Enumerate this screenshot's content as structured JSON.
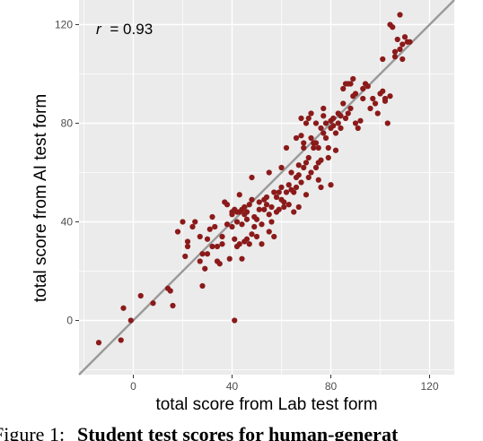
{
  "chart_data": {
    "type": "scatter",
    "annotation": {
      "r_symbol": "r",
      "r_value": "= 0.93"
    },
    "xlabel": "total score from Lab test form",
    "ylabel": "total score from AI test form",
    "xlim": [
      -22,
      130
    ],
    "ylim": [
      -22,
      130
    ],
    "x_ticks": [
      0,
      40,
      80,
      120
    ],
    "y_ticks": [
      0,
      40,
      80,
      120
    ],
    "grid": true,
    "reference_line": {
      "slope": 1,
      "intercept": 0
    },
    "point_color": "#8b1a1a",
    "panel_color": "#ebebeb",
    "grid_color": "#ffffff",
    "line_color": "#9a9a9a",
    "points": [
      [
        -14,
        -9
      ],
      [
        -5,
        -8
      ],
      [
        -4,
        5
      ],
      [
        -1,
        0
      ],
      [
        3,
        10
      ],
      [
        8,
        7
      ],
      [
        14,
        13
      ],
      [
        15,
        12
      ],
      [
        16,
        6
      ],
      [
        18,
        36
      ],
      [
        20,
        40
      ],
      [
        21,
        26
      ],
      [
        22,
        30
      ],
      [
        22,
        32
      ],
      [
        24,
        38
      ],
      [
        25,
        40
      ],
      [
        27,
        24
      ],
      [
        27,
        34
      ],
      [
        28,
        14
      ],
      [
        28,
        27
      ],
      [
        29,
        21
      ],
      [
        30,
        27
      ],
      [
        30,
        33
      ],
      [
        31,
        37
      ],
      [
        32,
        42
      ],
      [
        32,
        30
      ],
      [
        33,
        38
      ],
      [
        34,
        30
      ],
      [
        34,
        24
      ],
      [
        35,
        23
      ],
      [
        36,
        31
      ],
      [
        36,
        34
      ],
      [
        37,
        48
      ],
      [
        38,
        47
      ],
      [
        38,
        39
      ],
      [
        39,
        25
      ],
      [
        40,
        43
      ],
      [
        40,
        38
      ],
      [
        40,
        44
      ],
      [
        41,
        0
      ],
      [
        41,
        45
      ],
      [
        41,
        33
      ],
      [
        42,
        30
      ],
      [
        42,
        40
      ],
      [
        42,
        44
      ],
      [
        43,
        31
      ],
      [
        43,
        44
      ],
      [
        43,
        51
      ],
      [
        44,
        25
      ],
      [
        44,
        39
      ],
      [
        44,
        45
      ],
      [
        45,
        32
      ],
      [
        45,
        43
      ],
      [
        45,
        46
      ],
      [
        46,
        33
      ],
      [
        46,
        41
      ],
      [
        46,
        44
      ],
      [
        47,
        31
      ],
      [
        47,
        47
      ],
      [
        48,
        49
      ],
      [
        48,
        58
      ],
      [
        48,
        35
      ],
      [
        49,
        38
      ],
      [
        49,
        42
      ],
      [
        50,
        34
      ],
      [
        50,
        41
      ],
      [
        51,
        45
      ],
      [
        51,
        48
      ],
      [
        52,
        39
      ],
      [
        52,
        31
      ],
      [
        53,
        45
      ],
      [
        53,
        49
      ],
      [
        54,
        50
      ],
      [
        54,
        47
      ],
      [
        55,
        43
      ],
      [
        55,
        60
      ],
      [
        55,
        36
      ],
      [
        56,
        40
      ],
      [
        56,
        46
      ],
      [
        57,
        34
      ],
      [
        57,
        52
      ],
      [
        58,
        50
      ],
      [
        58,
        44
      ],
      [
        59,
        45
      ],
      [
        59,
        52
      ],
      [
        60,
        49
      ],
      [
        60,
        54
      ],
      [
        60,
        62
      ],
      [
        61,
        46
      ],
      [
        61,
        48
      ],
      [
        62,
        52
      ],
      [
        62,
        70
      ],
      [
        63,
        55
      ],
      [
        63,
        47
      ],
      [
        64,
        53
      ],
      [
        64,
        60
      ],
      [
        65,
        44
      ],
      [
        65,
        52
      ],
      [
        66,
        58
      ],
      [
        66,
        54
      ],
      [
        66,
        74
      ],
      [
        67,
        46
      ],
      [
        67,
        59
      ],
      [
        67,
        63
      ],
      [
        68,
        75
      ],
      [
        68,
        82
      ],
      [
        68,
        56
      ],
      [
        69,
        70
      ],
      [
        69,
        62
      ],
      [
        69,
        72
      ],
      [
        70,
        51
      ],
      [
        70,
        64
      ],
      [
        70,
        80
      ],
      [
        71,
        82
      ],
      [
        71,
        58
      ],
      [
        71,
        66
      ],
      [
        72,
        84
      ],
      [
        72,
        60
      ],
      [
        72,
        74
      ],
      [
        73,
        70
      ],
      [
        73,
        72
      ],
      [
        74,
        72
      ],
      [
        74,
        80
      ],
      [
        74,
        62
      ],
      [
        75,
        70
      ],
      [
        75,
        64
      ],
      [
        75,
        57
      ],
      [
        76,
        65
      ],
      [
        76,
        78
      ],
      [
        76,
        54
      ],
      [
        77,
        76
      ],
      [
        77,
        86
      ],
      [
        77,
        83
      ],
      [
        78,
        74
      ],
      [
        78,
        80
      ],
      [
        79,
        70
      ],
      [
        79,
        66
      ],
      [
        80,
        81
      ],
      [
        80,
        78
      ],
      [
        80,
        55
      ],
      [
        81,
        82
      ],
      [
        81,
        79
      ],
      [
        82,
        69
      ],
      [
        82,
        76
      ],
      [
        83,
        84
      ],
      [
        83,
        80
      ],
      [
        84,
        78
      ],
      [
        84,
        83
      ],
      [
        85,
        88
      ],
      [
        85,
        94
      ],
      [
        86,
        82
      ],
      [
        86,
        96
      ],
      [
        87,
        84
      ],
      [
        87,
        96
      ],
      [
        88,
        96
      ],
      [
        88,
        86
      ],
      [
        89,
        98
      ],
      [
        89,
        91
      ],
      [
        90,
        92
      ],
      [
        90,
        80
      ],
      [
        91,
        78
      ],
      [
        92,
        81
      ],
      [
        93,
        94
      ],
      [
        93,
        90
      ],
      [
        94,
        96
      ],
      [
        95,
        95
      ],
      [
        96,
        86
      ],
      [
        97,
        90
      ],
      [
        98,
        88
      ],
      [
        99,
        84
      ],
      [
        100,
        92
      ],
      [
        101,
        93
      ],
      [
        101,
        106
      ],
      [
        102,
        89
      ],
      [
        102,
        90
      ],
      [
        103,
        80
      ],
      [
        104,
        91
      ],
      [
        104,
        120
      ],
      [
        105,
        119
      ],
      [
        106,
        109
      ],
      [
        106,
        107
      ],
      [
        107,
        114
      ],
      [
        108,
        124
      ],
      [
        108,
        110
      ],
      [
        109,
        112
      ],
      [
        109,
        106
      ],
      [
        110,
        115
      ],
      [
        111,
        113
      ],
      [
        112,
        113
      ]
    ]
  },
  "caption": {
    "label": "Figure 1:",
    "text": "Student test scores for human-generat"
  }
}
